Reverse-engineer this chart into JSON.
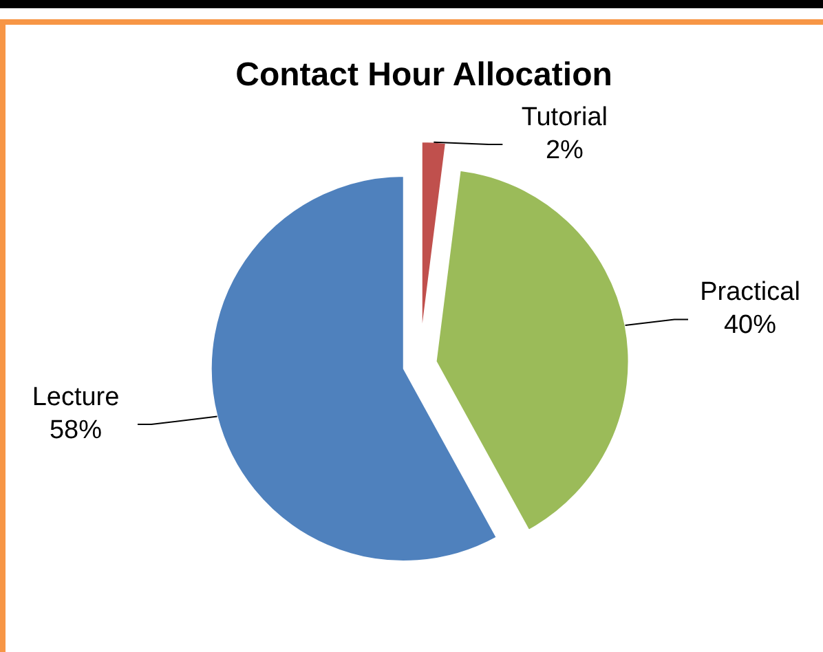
{
  "chart_data": {
    "type": "pie",
    "title": "Contact Hour Allocation",
    "categories": [
      "Tutorial",
      "Practical",
      "Lecture"
    ],
    "values": [
      2,
      40,
      58
    ],
    "colors": [
      "#c0504d",
      "#9bbb59",
      "#4f81bd"
    ],
    "value_labels": [
      "2%",
      "40%",
      "58%"
    ]
  }
}
